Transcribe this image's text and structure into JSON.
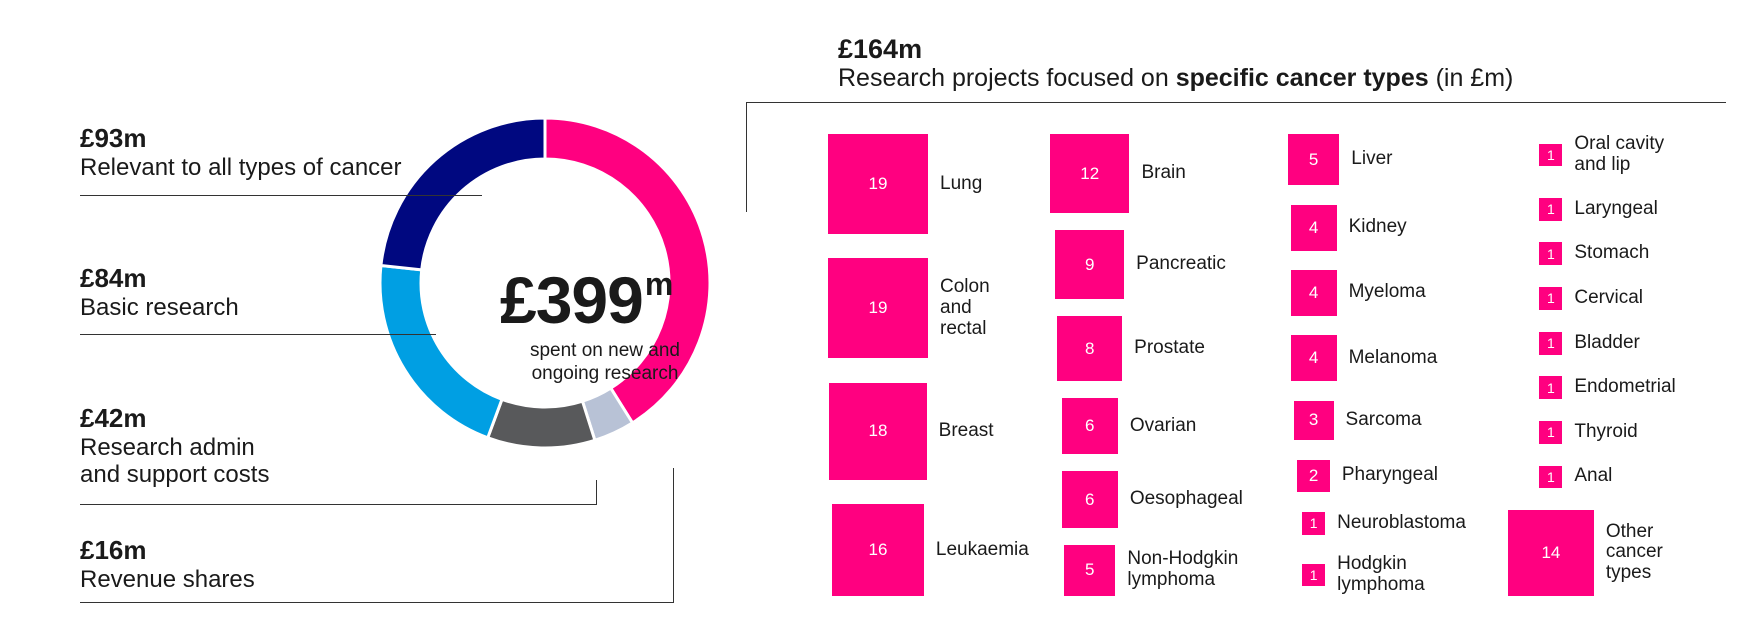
{
  "chart_data": {
    "type": "pie",
    "title": "£399m spent on new and ongoing research",
    "donut": {
      "total_value": "£399",
      "total_unit": "m",
      "subtitle_line1": "spent on new and",
      "subtitle_line2": "ongoing research",
      "segments": [
        {
          "name": "Research projects focused on specific cancer types",
          "value": 164,
          "color": "#ff0080"
        },
        {
          "name": "Revenue shares",
          "value": 16,
          "color": "#b8c2d6"
        },
        {
          "name": "Research admin and support costs",
          "value": 42,
          "color": "#58595b"
        },
        {
          "name": "Basic research",
          "value": 84,
          "color": "#009fe3"
        },
        {
          "name": "Relevant to all types of cancer",
          "value": 93,
          "color": "#000880"
        }
      ]
    },
    "left_labels": [
      {
        "amount": "£93m",
        "lines": [
          "Relevant to all types of cancer"
        ]
      },
      {
        "amount": "£84m",
        "lines": [
          "Basic research"
        ]
      },
      {
        "amount": "£42m",
        "lines": [
          "Research admin",
          "and support costs"
        ]
      },
      {
        "amount": "£16m",
        "lines": [
          "Revenue shares"
        ]
      }
    ],
    "cancer_types": {
      "amount": "£164m",
      "title_pre": "Research projects focused on",
      "title_bold": "specific cancer types",
      "title_post": "(in £m)",
      "columns": [
        [
          {
            "value": 19,
            "label": "Lung"
          },
          {
            "value": 19,
            "label": "Colon\nand\nrectal"
          },
          {
            "value": 18,
            "label": "Breast"
          },
          {
            "value": 16,
            "label": "Leukaemia"
          }
        ],
        [
          {
            "value": 12,
            "label": "Brain"
          },
          {
            "value": 9,
            "label": "Pancreatic"
          },
          {
            "value": 8,
            "label": "Prostate"
          },
          {
            "value": 6,
            "label": "Ovarian"
          },
          {
            "value": 6,
            "label": "Oesophageal"
          },
          {
            "value": 5,
            "label": "Non-Hodgkin\nlymphoma"
          }
        ],
        [
          {
            "value": 5,
            "label": "Liver"
          },
          {
            "value": 4,
            "label": "Kidney"
          },
          {
            "value": 4,
            "label": "Myeloma"
          },
          {
            "value": 4,
            "label": "Melanoma"
          },
          {
            "value": 3,
            "label": "Sarcoma"
          },
          {
            "value": 2,
            "label": "Pharyngeal"
          },
          {
            "value": 1,
            "label": "Neuroblastoma"
          },
          {
            "value": 1,
            "label": "Hodgkin\nlymphoma"
          }
        ],
        [
          {
            "value": 1,
            "label": "Oral cavity\nand lip"
          },
          {
            "value": 1,
            "label": "Laryngeal"
          },
          {
            "value": 1,
            "label": "Stomach"
          },
          {
            "value": 1,
            "label": "Cervical"
          },
          {
            "value": 1,
            "label": "Bladder"
          },
          {
            "value": 1,
            "label": "Endometrial"
          },
          {
            "value": 1,
            "label": "Thyroid"
          },
          {
            "value": 1,
            "label": "Anal"
          },
          {
            "value": 14,
            "label": "Other\ncancer\ntypes"
          }
        ]
      ]
    }
  }
}
